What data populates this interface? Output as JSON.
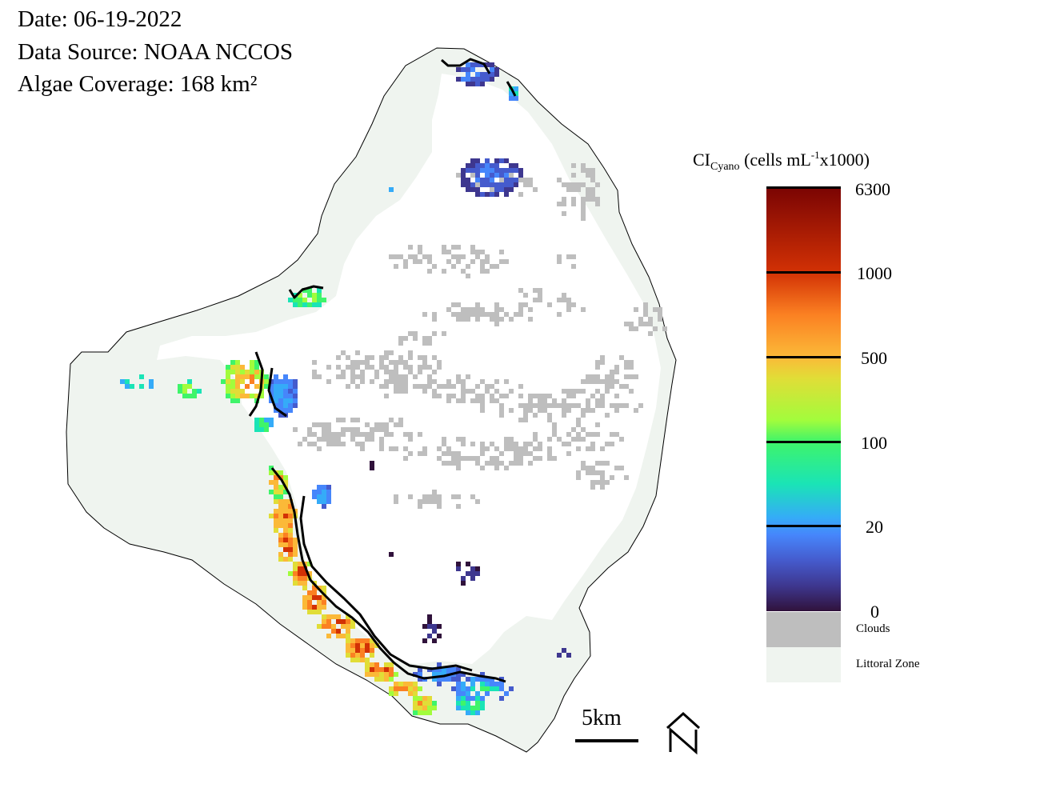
{
  "info": {
    "date": "Date: 06-19-2022",
    "source": "Data Source: NOAA NCCOS",
    "coverage": "Algae Coverage: 168 km²"
  },
  "legend": {
    "title_main": "CI",
    "title_sub": "Cyano",
    "title_units_a": " (cells mL",
    "title_units_sup": "-1",
    "title_units_b": "x1000)",
    "ticks": [
      "6300",
      "1000",
      "500",
      "100",
      "20",
      "0"
    ],
    "clouds_label": "Clouds",
    "littoral_label": "Littoral Zone"
  },
  "scale": {
    "label": "5km"
  },
  "colors": {
    "littoral": "#eff4ef",
    "clouds": "#bebebe",
    "water": "#ffffff",
    "outline": "#000000",
    "bloom_contour": "#000000"
  },
  "icons": {
    "north_arrow": "north-arrow-icon"
  }
}
